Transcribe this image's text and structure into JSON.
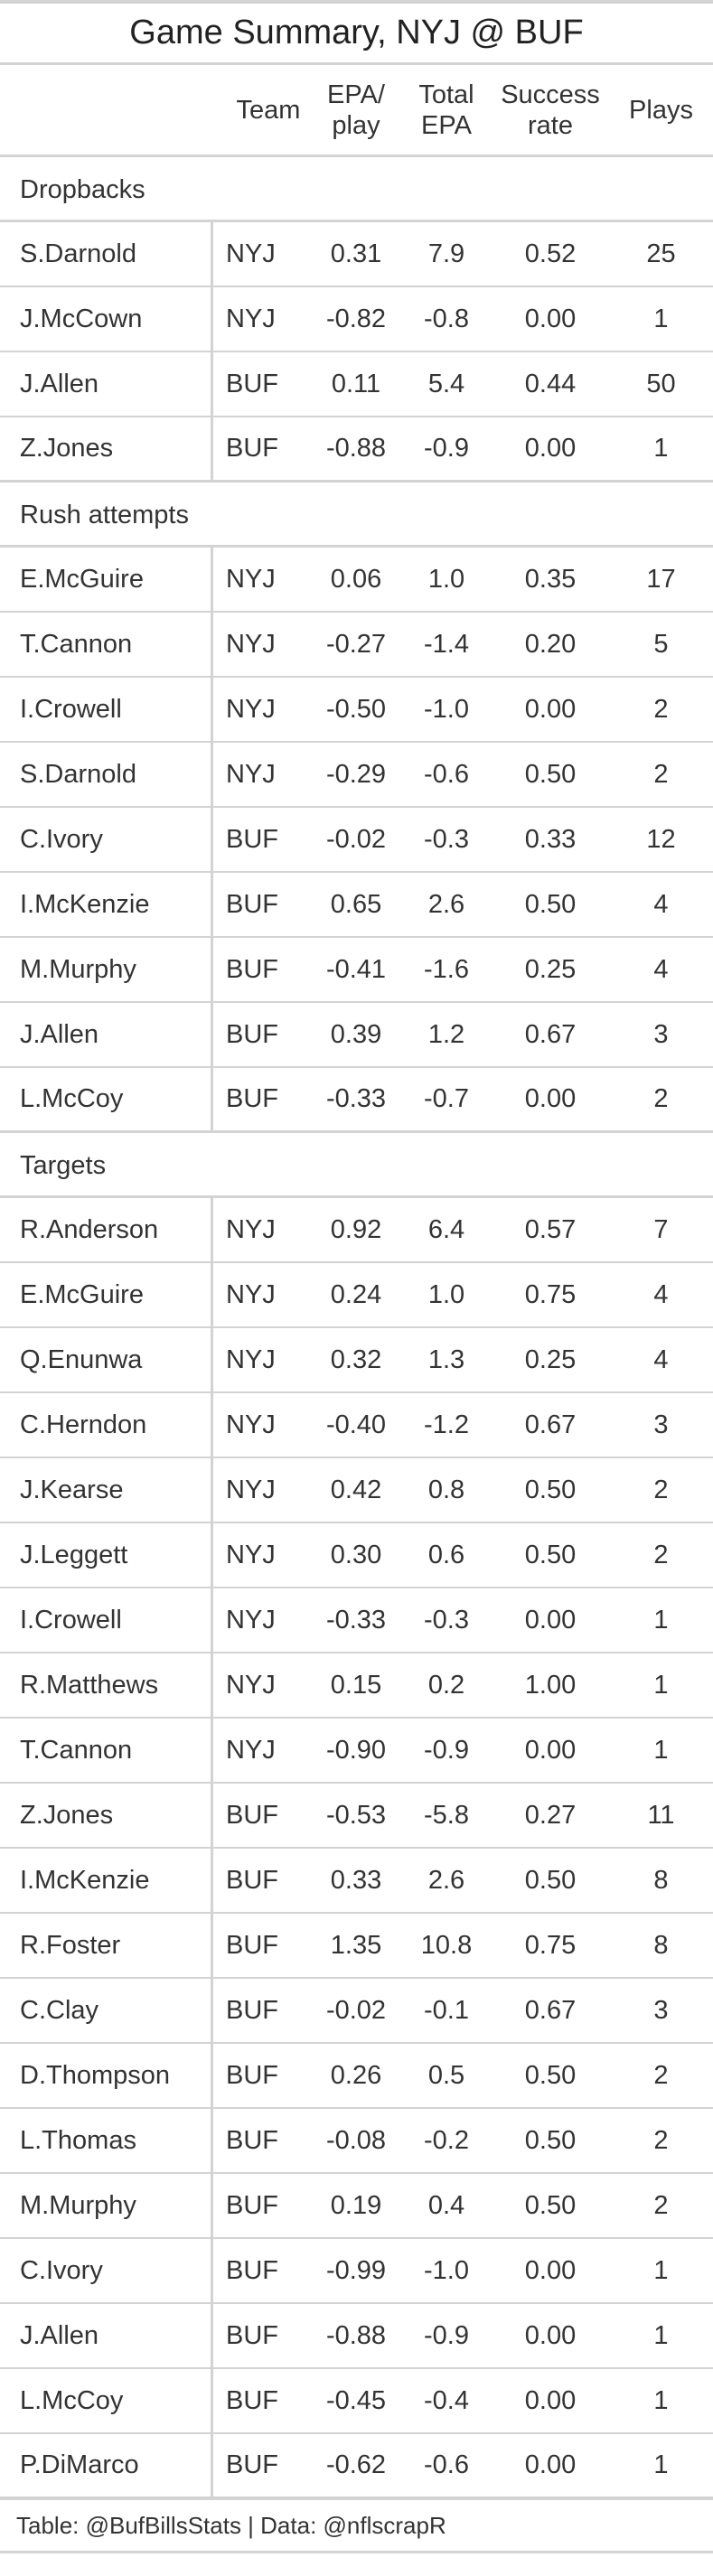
{
  "title": "Game Summary, NYJ @ BUF",
  "columns": {
    "team": "Team",
    "epa_play": [
      "EPA/",
      "play"
    ],
    "total_epa": [
      "Total",
      "EPA"
    ],
    "success_rate": [
      "Success",
      "rate"
    ],
    "plays": "Plays"
  },
  "groups": [
    {
      "label": "Dropbacks",
      "rows": [
        [
          "S.Darnold",
          "NYJ",
          "0.31",
          "7.9",
          "0.52",
          "25"
        ],
        [
          "J.McCown",
          "NYJ",
          "-0.82",
          "-0.8",
          "0.00",
          "1"
        ],
        [
          "J.Allen",
          "BUF",
          "0.11",
          "5.4",
          "0.44",
          "50"
        ],
        [
          "Z.Jones",
          "BUF",
          "-0.88",
          "-0.9",
          "0.00",
          "1"
        ]
      ]
    },
    {
      "label": "Rush attempts",
      "rows": [
        [
          "E.McGuire",
          "NYJ",
          "0.06",
          "1.0",
          "0.35",
          "17"
        ],
        [
          "T.Cannon",
          "NYJ",
          "-0.27",
          "-1.4",
          "0.20",
          "5"
        ],
        [
          "I.Crowell",
          "NYJ",
          "-0.50",
          "-1.0",
          "0.00",
          "2"
        ],
        [
          "S.Darnold",
          "NYJ",
          "-0.29",
          "-0.6",
          "0.50",
          "2"
        ],
        [
          "C.Ivory",
          "BUF",
          "-0.02",
          "-0.3",
          "0.33",
          "12"
        ],
        [
          "I.McKenzie",
          "BUF",
          "0.65",
          "2.6",
          "0.50",
          "4"
        ],
        [
          "M.Murphy",
          "BUF",
          "-0.41",
          "-1.6",
          "0.25",
          "4"
        ],
        [
          "J.Allen",
          "BUF",
          "0.39",
          "1.2",
          "0.67",
          "3"
        ],
        [
          "L.McCoy",
          "BUF",
          "-0.33",
          "-0.7",
          "0.00",
          "2"
        ]
      ]
    },
    {
      "label": "Targets",
      "rows": [
        [
          "R.Anderson",
          "NYJ",
          "0.92",
          "6.4",
          "0.57",
          "7"
        ],
        [
          "E.McGuire",
          "NYJ",
          "0.24",
          "1.0",
          "0.75",
          "4"
        ],
        [
          "Q.Enunwa",
          "NYJ",
          "0.32",
          "1.3",
          "0.25",
          "4"
        ],
        [
          "C.Herndon",
          "NYJ",
          "-0.40",
          "-1.2",
          "0.67",
          "3"
        ],
        [
          "J.Kearse",
          "NYJ",
          "0.42",
          "0.8",
          "0.50",
          "2"
        ],
        [
          "J.Leggett",
          "NYJ",
          "0.30",
          "0.6",
          "0.50",
          "2"
        ],
        [
          "I.Crowell",
          "NYJ",
          "-0.33",
          "-0.3",
          "0.00",
          "1"
        ],
        [
          "R.Matthews",
          "NYJ",
          "0.15",
          "0.2",
          "1.00",
          "1"
        ],
        [
          "T.Cannon",
          "NYJ",
          "-0.90",
          "-0.9",
          "0.00",
          "1"
        ],
        [
          "Z.Jones",
          "BUF",
          "-0.53",
          "-5.8",
          "0.27",
          "11"
        ],
        [
          "I.McKenzie",
          "BUF",
          "0.33",
          "2.6",
          "0.50",
          "8"
        ],
        [
          "R.Foster",
          "BUF",
          "1.35",
          "10.8",
          "0.75",
          "8"
        ],
        [
          "C.Clay",
          "BUF",
          "-0.02",
          "-0.1",
          "0.67",
          "3"
        ],
        [
          "D.Thompson",
          "BUF",
          "0.26",
          "0.5",
          "0.50",
          "2"
        ],
        [
          "L.Thomas",
          "BUF",
          "-0.08",
          "-0.2",
          "0.50",
          "2"
        ],
        [
          "M.Murphy",
          "BUF",
          "0.19",
          "0.4",
          "0.50",
          "2"
        ],
        [
          "C.Ivory",
          "BUF",
          "-0.99",
          "-1.0",
          "0.00",
          "1"
        ],
        [
          "J.Allen",
          "BUF",
          "-0.88",
          "-0.9",
          "0.00",
          "1"
        ],
        [
          "L.McCoy",
          "BUF",
          "-0.45",
          "-0.4",
          "0.00",
          "1"
        ],
        [
          "P.DiMarco",
          "BUF",
          "-0.62",
          "-0.6",
          "0.00",
          "1"
        ]
      ]
    }
  ],
  "footer": "Table: @BufBillsStats | Data: @nflscrapR"
}
